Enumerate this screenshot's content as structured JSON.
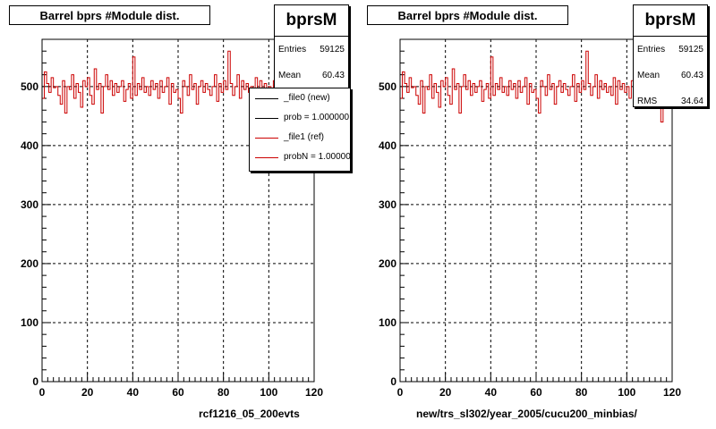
{
  "chart_data": [
    {
      "type": "line",
      "title": "Barrel bprs #Module dist.",
      "xlabel": "rcf1216_05_200evts",
      "ylabel": "",
      "xlim": [
        0,
        120
      ],
      "ylim": [
        0,
        580
      ],
      "xticks": [
        "0",
        "20",
        "40",
        "60",
        "80",
        "100",
        "120"
      ],
      "yticks": [
        "0",
        "100",
        "200",
        "300",
        "400",
        "500"
      ],
      "grid": true,
      "stats": {
        "name": "bprsM",
        "entries_label": "Entries",
        "entries": "59125",
        "mean_label": "Mean",
        "mean": "60.43"
      },
      "legend": {
        "placement": "top-right",
        "entries": [
          {
            "label": "_file0 (new)",
            "color": "#000000"
          },
          {
            "label": "prob = 1.000000",
            "color": "#000000"
          },
          {
            "label": "_file1 (ref)",
            "color": "#cc0000"
          },
          {
            "label": "probN = 1.000000",
            "color": "#cc0000"
          }
        ]
      },
      "series": [
        {
          "color": "#cc0000",
          "values": [
            480,
            525,
            505,
            490,
            515,
            498,
            500,
            485,
            470,
            510,
            455,
            500,
            495,
            520,
            480,
            505,
            490,
            465,
            510,
            500,
            515,
            485,
            470,
            530,
            495,
            505,
            455,
            500,
            520,
            495,
            510,
            485,
            505,
            490,
            500,
            510,
            475,
            495,
            505,
            480,
            550,
            485,
            505,
            495,
            515,
            490,
            500,
            485,
            510,
            495,
            505,
            480,
            510,
            490,
            500,
            515,
            470,
            505,
            490,
            495,
            480,
            455,
            510,
            500,
            485,
            520,
            495,
            505,
            470,
            500,
            510,
            490,
            505,
            495,
            485,
            500,
            520,
            475,
            505,
            490,
            510,
            495,
            560,
            505,
            485,
            500,
            520,
            480,
            510,
            495,
            505,
            490,
            500,
            485,
            515,
            470,
            510,
            495,
            505,
            490,
            500,
            480,
            510,
            495,
            520,
            485,
            500,
            505,
            490,
            475,
            510,
            495,
            505,
            470,
            500,
            450,
            495,
            505,
            480,
            510
          ]
        }
      ]
    },
    {
      "type": "line",
      "title": "Barrel bprs #Module dist.",
      "xlabel": "new/trs_sl302/year_2005/cucu200_minbias/",
      "ylabel": "",
      "xlim": [
        0,
        120
      ],
      "ylim": [
        0,
        580
      ],
      "xticks": [
        "0",
        "20",
        "40",
        "60",
        "80",
        "100",
        "120"
      ],
      "yticks": [
        "0",
        "100",
        "200",
        "300",
        "400",
        "500"
      ],
      "grid": true,
      "stats": {
        "name": "bprsM",
        "entries_label": "Entries",
        "entries": "59125",
        "mean_label": "Mean",
        "mean": "60.43",
        "rms_label": "RMS",
        "rms": "34.64"
      },
      "series": [
        {
          "color": "#cc0000",
          "values": [
            480,
            525,
            505,
            490,
            515,
            498,
            500,
            485,
            470,
            510,
            455,
            500,
            495,
            520,
            480,
            505,
            490,
            465,
            510,
            500,
            515,
            485,
            470,
            530,
            495,
            505,
            455,
            500,
            520,
            495,
            510,
            485,
            505,
            490,
            500,
            510,
            475,
            495,
            505,
            480,
            550,
            485,
            505,
            495,
            515,
            490,
            500,
            485,
            510,
            495,
            505,
            480,
            510,
            490,
            500,
            515,
            470,
            505,
            490,
            495,
            480,
            455,
            510,
            500,
            485,
            520,
            495,
            505,
            470,
            500,
            510,
            490,
            505,
            495,
            485,
            500,
            520,
            475,
            505,
            490,
            510,
            495,
            560,
            505,
            485,
            500,
            520,
            480,
            510,
            495,
            505,
            490,
            500,
            485,
            515,
            470,
            510,
            495,
            505,
            490,
            500,
            480,
            510,
            495,
            520,
            485,
            500,
            505,
            490,
            475,
            510,
            495,
            505,
            470,
            500,
            440,
            495,
            505,
            480,
            510
          ]
        }
      ]
    }
  ]
}
